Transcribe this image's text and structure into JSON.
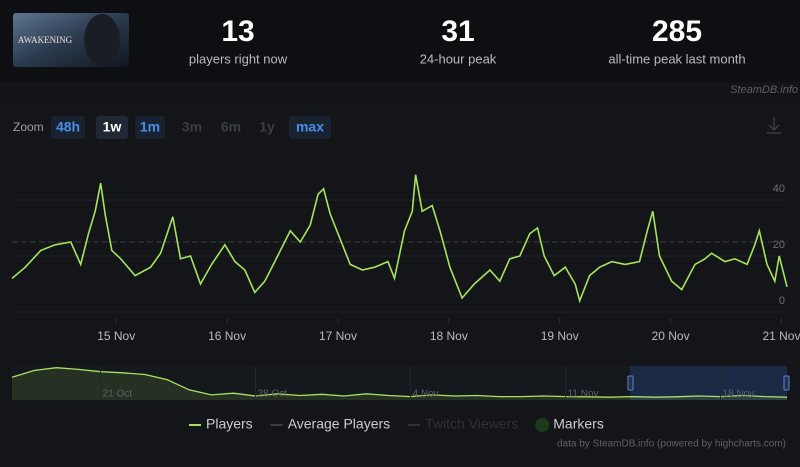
{
  "header": {
    "thumbnail_text": "AWAKENING",
    "stats": [
      {
        "value": "13",
        "label": "players right now"
      },
      {
        "value": "31",
        "label": "24-hour peak"
      },
      {
        "value": "285",
        "label": "all-time peak last month"
      }
    ],
    "watermark": "SteamDB.info"
  },
  "zoom": {
    "label": "Zoom",
    "buttons": [
      {
        "text": "48h",
        "state": "enabled"
      },
      {
        "text": "1w",
        "state": "active"
      },
      {
        "text": "1m",
        "state": "enabled"
      },
      {
        "text": "3m",
        "state": "disabled"
      },
      {
        "text": "6m",
        "state": "disabled"
      },
      {
        "text": "1y",
        "state": "disabled"
      },
      {
        "text": "max",
        "state": "enabled"
      }
    ]
  },
  "chart_data": {
    "type": "line",
    "x": [
      14.06,
      14.18,
      14.32,
      14.45,
      14.59,
      14.68,
      14.75,
      14.81,
      14.86,
      14.9,
      14.96,
      15.04,
      15.17,
      15.31,
      15.4,
      15.51,
      15.58,
      15.67,
      15.76,
      15.86,
      15.98,
      16.07,
      16.16,
      16.25,
      16.34,
      16.43,
      16.57,
      16.66,
      16.75,
      16.82,
      16.87,
      16.93,
      17.02,
      17.11,
      17.22,
      17.33,
      17.45,
      17.51,
      17.6,
      17.67,
      17.7,
      17.76,
      17.85,
      17.92,
      18.01,
      18.12,
      18.23,
      18.37,
      18.46,
      18.55,
      18.64,
      18.73,
      18.8,
      18.86,
      18.95,
      19.05,
      19.14,
      19.18,
      19.27,
      19.36,
      19.47,
      19.59,
      19.72,
      19.79,
      19.84,
      19.9,
      20.01,
      20.1,
      20.22,
      20.31,
      20.37,
      20.49,
      20.58,
      20.69,
      20.76,
      20.8,
      20.87,
      20.94,
      20.98,
      21.05
    ],
    "series": [
      {
        "name": "Players",
        "color": "#a6e35f",
        "style": "solid",
        "values": [
          12,
          16,
          22,
          24,
          25,
          17,
          28,
          36,
          46,
          35,
          22,
          19,
          13,
          16,
          21,
          34,
          19,
          20,
          10,
          17,
          24,
          18,
          15,
          7,
          11,
          18,
          29,
          25,
          31,
          42,
          44,
          35,
          26,
          17,
          15,
          16,
          18,
          12,
          29,
          36,
          49,
          36,
          38,
          29,
          16,
          5,
          10,
          15,
          11,
          19,
          20,
          28,
          30,
          20,
          13,
          16,
          10,
          4,
          13,
          16,
          18,
          17,
          18,
          29,
          36,
          20,
          11,
          8,
          17,
          19,
          21,
          18,
          19,
          17,
          24,
          29,
          17,
          11,
          20,
          9
        ]
      },
      {
        "name": "Average Players",
        "color": "#3b3f45",
        "style": "dashed",
        "values": [
          25,
          25,
          25,
          25,
          25,
          25,
          25,
          25,
          25,
          25,
          25,
          25,
          25,
          25,
          25,
          25,
          25,
          25,
          25,
          25,
          25,
          25,
          25,
          25,
          25,
          25,
          25,
          25,
          25,
          25,
          25,
          25,
          25,
          25,
          25,
          25,
          25,
          25,
          25,
          25,
          25,
          25,
          25,
          25,
          25,
          25,
          25,
          25,
          25,
          25,
          25,
          25,
          25,
          25,
          25,
          25,
          25,
          25,
          25,
          25,
          25,
          25,
          25,
          25,
          25,
          25,
          25,
          25,
          25,
          25,
          25,
          25,
          25,
          25,
          25,
          25,
          25,
          25,
          25,
          25
        ]
      }
    ],
    "extra_legend": [
      {
        "name": "Twitch Viewers",
        "color": "#2e3136",
        "disabled": true
      },
      {
        "name": "Markers",
        "color": "#1d3a1d",
        "disabled": false
      }
    ],
    "xlim": [
      14.06,
      21.05
    ],
    "xticks": [
      {
        "value": 15,
        "label": "15 Nov"
      },
      {
        "value": 16,
        "label": "16 Nov"
      },
      {
        "value": 17,
        "label": "17 Nov"
      },
      {
        "value": 18,
        "label": "18 Nov"
      },
      {
        "value": 19,
        "label": "19 Nov"
      },
      {
        "value": 20,
        "label": "20 Nov"
      },
      {
        "value": 21,
        "label": "21 Nov"
      }
    ],
    "ylim": [
      0,
      60
    ],
    "yticks": [
      0,
      20,
      40
    ],
    "grid": true,
    "navigator": {
      "color": "#a6e35f",
      "ylim": [
        0,
        300
      ],
      "values": [
        200,
        260,
        285,
        270,
        250,
        240,
        225,
        180,
        90,
        45,
        60,
        35,
        55,
        40,
        50,
        35,
        55,
        40,
        30,
        45,
        35,
        40,
        30,
        30,
        35,
        30,
        28,
        25,
        30,
        25,
        28,
        35,
        30,
        40,
        30,
        25
      ],
      "xticks": [
        {
          "value": 4,
          "label": "21 Oct"
        },
        {
          "value": 11,
          "label": "28 Oct"
        },
        {
          "value": 18,
          "label": "4 Nov"
        },
        {
          "value": 25,
          "label": "11 Nov"
        },
        {
          "value": 32,
          "label": "18 Nov"
        }
      ]
    },
    "credits": "data by SteamDB.info (powered by highcharts.com)"
  }
}
